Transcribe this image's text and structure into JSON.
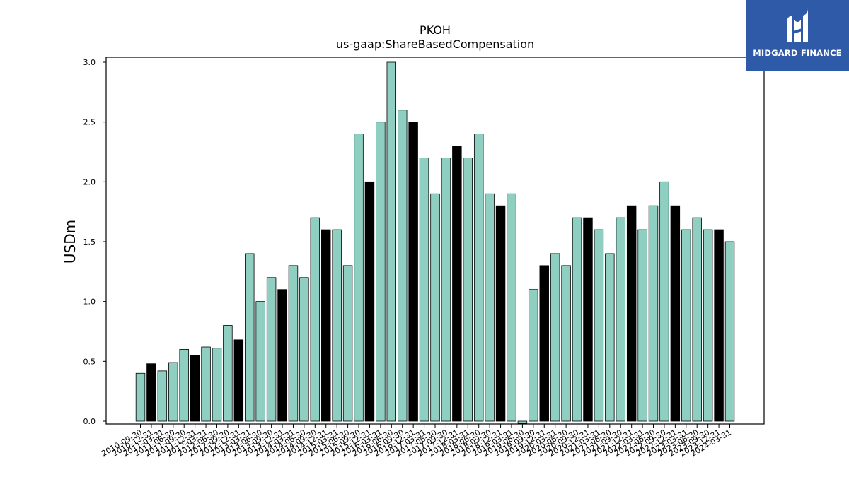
{
  "brand": {
    "name": "MIDGARD FINANCE",
    "bg_color": "#2f5aa8"
  },
  "chart_data": {
    "type": "bar",
    "title": "PKOH",
    "subtitle": "us-gaap:ShareBasedCompensation",
    "ylabel": "USDm",
    "xlabel": "",
    "ylim": [
      0,
      3.0
    ],
    "yticks": [
      "0.0",
      "0.5",
      "1.0",
      "1.5",
      "2.0",
      "2.5",
      "3.0"
    ],
    "bar_color": "#8ecfc2",
    "highlight_color": "#000000",
    "categories": [
      "2010-09-30",
      "2010-12-31",
      "2011-03-31",
      "2011-06-30",
      "2011-09-30",
      "2011-12-31",
      "2012-03-31",
      "2012-06-30",
      "2012-09-30",
      "2012-12-31",
      "2013-03-31",
      "2013-06-30",
      "2013-09-30",
      "2013-12-31",
      "2014-03-31",
      "2014-06-30",
      "2014-09-30",
      "2014-12-31",
      "2015-03-31",
      "2015-06-30",
      "2015-09-30",
      "2015-12-31",
      "2016-03-31",
      "2016-06-30",
      "2016-09-30",
      "2016-12-31",
      "2017-03-31",
      "2017-06-30",
      "2017-09-30",
      "2017-12-31",
      "2018-03-31",
      "2018-06-30",
      "2018-09-30",
      "2018-12-31",
      "2019-03-31",
      "2019-06-30",
      "2019-09-30",
      "2019-12-31",
      "2020-03-31",
      "2020-06-30",
      "2020-09-30",
      "2020-12-31",
      "2021-03-31",
      "2021-06-30",
      "2021-09-30",
      "2021-12-31",
      "2022-03-31",
      "2022-06-30",
      "2022-09-30",
      "2022-12-31",
      "2023-03-31",
      "2023-06-30",
      "2023-09-30",
      "2023-12-31",
      "2024-03-31"
    ],
    "values": [
      0.4,
      0.48,
      0.42,
      0.49,
      0.6,
      0.55,
      0.62,
      0.61,
      0.8,
      0.68,
      1.4,
      1.0,
      1.2,
      1.1,
      1.3,
      1.2,
      1.7,
      1.6,
      1.6,
      1.3,
      2.4,
      2.0,
      2.5,
      3.0,
      2.6,
      2.5,
      2.2,
      1.9,
      2.2,
      2.3,
      2.2,
      2.4,
      1.9,
      1.8,
      1.9,
      -0.02,
      1.1,
      1.3,
      1.4,
      1.3,
      1.7,
      1.7,
      1.6,
      1.4,
      1.7,
      1.8,
      1.6,
      1.8,
      2.0,
      1.8,
      1.6,
      1.7,
      1.6,
      1.6,
      1.5
    ],
    "highlighted": [
      false,
      true,
      false,
      false,
      false,
      true,
      false,
      false,
      false,
      true,
      false,
      false,
      false,
      true,
      false,
      false,
      false,
      true,
      false,
      false,
      false,
      true,
      false,
      false,
      false,
      true,
      false,
      false,
      false,
      true,
      false,
      false,
      false,
      true,
      false,
      false,
      false,
      true,
      false,
      false,
      false,
      true,
      false,
      false,
      false,
      true,
      false,
      false,
      false,
      true,
      false,
      false,
      false,
      true,
      false
    ]
  }
}
